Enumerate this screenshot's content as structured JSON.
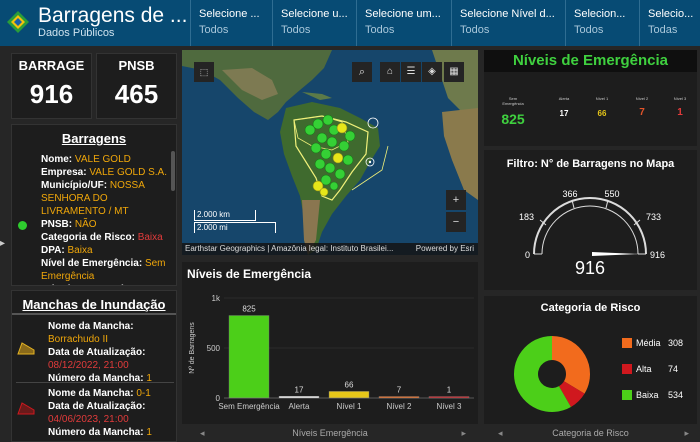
{
  "header": {
    "title": "Barragens de ...",
    "subtitle": "Dados Públicos",
    "filters": [
      {
        "label": "Selecione ...",
        "value": "Todos"
      },
      {
        "label": "Selecione u...",
        "value": "Todos"
      },
      {
        "label": "Selecione um...",
        "value": "Todos"
      },
      {
        "label": "Selecione Nível d...",
        "value": "Todos"
      },
      {
        "label": "Selecion...",
        "value": "Todos"
      },
      {
        "label": "Selecio...",
        "value": "Todas"
      }
    ]
  },
  "kpis": {
    "barrage": {
      "label": "BARRAGE",
      "value": "916"
    },
    "pnsb": {
      "label": "PNSB",
      "value": "465"
    }
  },
  "barragens": {
    "title": "Barragens",
    "fields": [
      {
        "key": "Nome: ",
        "value": "VALE GOLD",
        "color": "orange"
      },
      {
        "key": "Empresa: ",
        "value": "VALE GOLD S.A.",
        "color": "orange"
      },
      {
        "key": "Município/UF: ",
        "value": "NOSSA SENHORA DO LIVRAMENTO / MT",
        "color": "orange"
      },
      {
        "key": "PNSB: ",
        "value": "NÃO",
        "color": "orange"
      },
      {
        "key": "Categoria de Risco: ",
        "value": "Baixa",
        "color": "red"
      },
      {
        "key": "DPA: ",
        "value": "Baixa",
        "color": "orange"
      },
      {
        "key": "Nível de Emergência: ",
        "value": "Sem Emergência",
        "color": "orange"
      },
      {
        "key": "Método Construtivo: ",
        "value": "",
        "color": "orange"
      }
    ]
  },
  "manchas": {
    "title": "Manchas de Inundação",
    "items": [
      {
        "nome_label": "Nome da Mancha:",
        "nome": "Borrachudo II",
        "data_label": "Data de Atualização:",
        "data": "08/12/2022, 21:00",
        "num_label": "Número da Mancha:",
        "num": "1"
      },
      {
        "nome_label": "Nome da Mancha:",
        "nome": "0-1",
        "data_label": "Data de Atualização:",
        "data": "04/06/2023, 21:00",
        "num_label": "Número da Mancha:",
        "num": "1"
      }
    ]
  },
  "map": {
    "attribution": "Earthstar Geographics | Amazônia legal: Instituto Brasilei...",
    "powered": "Powered by Esri",
    "scale_km": "2.000 km",
    "scale_mi": "2.000 mi",
    "icons": [
      "select-icon",
      "search-icon",
      "home-icon",
      "list-icon",
      "layers-icon",
      "basemap-icon",
      "zoom-in-icon",
      "zoom-out-icon"
    ]
  },
  "niveis": {
    "title": "Níveis de Emergência",
    "levels": [
      {
        "label": "Sem Emergência",
        "value": "825",
        "color": "#3fd03f"
      },
      {
        "label": "Alerta",
        "value": "17",
        "color": "#ffffff"
      },
      {
        "label": "Nível 1",
        "value": "66",
        "color": "#e6c619"
      },
      {
        "label": "Nível 2",
        "value": "7",
        "color": "#e2542a"
      },
      {
        "label": "Nível 3",
        "value": "1",
        "color": "#e23b3b"
      }
    ]
  },
  "gauge": {
    "title": "Filtro: N° de Barragens no Mapa",
    "value": "916",
    "ticks": [
      "0",
      "183",
      "366",
      "550",
      "733",
      "916"
    ],
    "min": 0,
    "max": 916,
    "current": 916
  },
  "risco": {
    "title": "Categoria de Risco",
    "footer": "Categoria de Risco",
    "slices": [
      {
        "label": "Média",
        "value": 308,
        "color": "#f26b1d"
      },
      {
        "label": "Alta",
        "value": 74,
        "color": "#d0181e"
      },
      {
        "label": "Baixa",
        "value": 534,
        "color": "#4ccf19"
      }
    ]
  },
  "chart_data": {
    "type": "bar",
    "title": "Níveis de Emergência",
    "xlabel": "Níveis Emergência",
    "ylabel": "Nº de Barragens",
    "categories": [
      "Sem Emergência",
      "Alerta",
      "Nível 1",
      "Nível 2",
      "Nível 3"
    ],
    "values": [
      825,
      17,
      66,
      7,
      1
    ],
    "colors": [
      "#4ccf19",
      "#ffffff",
      "#e6c619",
      "#f26b1d",
      "#d0181e"
    ],
    "ylim": [
      0,
      1000
    ],
    "yticks": [
      "0",
      "500",
      "1k"
    ]
  }
}
